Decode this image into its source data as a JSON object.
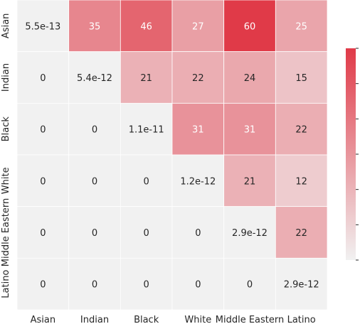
{
  "chart_data": {
    "type": "heatmap",
    "title": "",
    "xlabel": "",
    "ylabel": "",
    "x_categories": [
      "Asian",
      "Indian",
      "Black",
      "White",
      "Middle Eastern",
      "Latino"
    ],
    "y_categories": [
      "Asian",
      "Indian",
      "Black",
      "White",
      "Middle Eastern",
      "Latino"
    ],
    "cells": [
      [
        "5.5e-13",
        "35",
        "46",
        "27",
        "60",
        "25"
      ],
      [
        "0",
        "5.4e-12",
        "21",
        "22",
        "24",
        "15"
      ],
      [
        "0",
        "0",
        "1.1e-11",
        "31",
        "31",
        "22"
      ],
      [
        "0",
        "0",
        "0",
        "1.2e-12",
        "21",
        "12"
      ],
      [
        "0",
        "0",
        "0",
        "0",
        "2.9e-12",
        "22"
      ],
      [
        "0",
        "0",
        "0",
        "0",
        "0",
        "2.9e-12"
      ]
    ],
    "values": [
      [
        5.5e-13,
        35,
        46,
        27,
        60,
        25
      ],
      [
        0,
        5.4e-12,
        21,
        22,
        24,
        15
      ],
      [
        0,
        0,
        1.1e-11,
        31,
        31,
        22
      ],
      [
        0,
        0,
        0,
        1.2e-12,
        21,
        12
      ],
      [
        0,
        0,
        0,
        0,
        2.9e-12,
        22
      ],
      [
        0,
        0,
        0,
        0,
        0,
        2.9e-12
      ]
    ],
    "vmin": 0,
    "vmax": 60,
    "colorbar": true,
    "colorbar_tick_labels": false,
    "colormap": {
      "low": "#f1f1f1",
      "high": "#e03a48"
    }
  }
}
